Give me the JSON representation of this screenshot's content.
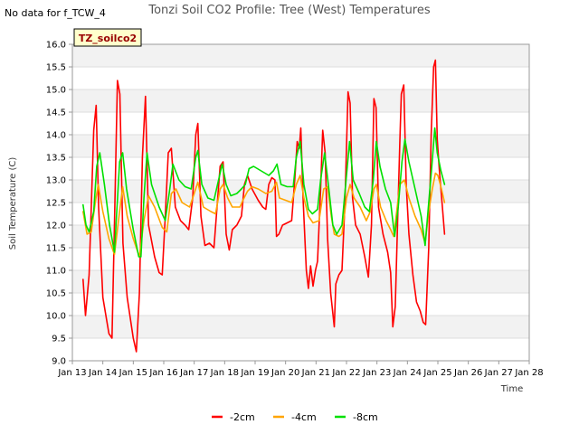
{
  "chart_data": {
    "type": "line",
    "title": "Tonzi Soil CO2 Profile: Tree (West) Temperatures",
    "no_data_note": "No data for f_TCW_4",
    "tag_label": "TZ_soilco2",
    "xlabel": "Time",
    "ylabel": "Soil Temperature (C)",
    "xlim": [
      13,
      28
    ],
    "ylim": [
      9.0,
      16.0
    ],
    "x_ticks": [
      13,
      14,
      15,
      16,
      17,
      18,
      19,
      20,
      21,
      22,
      23,
      24,
      25,
      26,
      27,
      28
    ],
    "x_tick_labels": [
      "Jan 13",
      "Jan 14",
      "Jan 15",
      "Jan 16",
      "Jan 17",
      "Jan 18",
      "Jan 19",
      "Jan 20",
      "Jan 21",
      "Jan 22",
      "Jan 23",
      "Jan 24",
      "Jan 25",
      "Jan 26",
      "Jan 27",
      "Jan 28"
    ],
    "y_ticks": [
      9.0,
      9.5,
      10.0,
      10.5,
      11.0,
      11.5,
      12.0,
      12.5,
      13.0,
      13.5,
      14.0,
      14.5,
      15.0,
      15.5,
      16.0
    ],
    "y_tick_labels": [
      "9.0",
      "9.5",
      "10.0",
      "10.5",
      "11.0",
      "11.5",
      "12.0",
      "12.5",
      "13.0",
      "13.5",
      "14.0",
      "14.5",
      "15.0",
      "15.5",
      "16.0"
    ],
    "series": [
      {
        "name": "-2cm",
        "color": "#ff0000",
        "points": [
          [
            13.35,
            10.8
          ],
          [
            13.43,
            10.0
          ],
          [
            13.55,
            10.9
          ],
          [
            13.7,
            14.1
          ],
          [
            13.78,
            14.65
          ],
          [
            13.86,
            12.4
          ],
          [
            14.0,
            10.4
          ],
          [
            14.2,
            9.6
          ],
          [
            14.3,
            9.5
          ],
          [
            14.38,
            12.0
          ],
          [
            14.48,
            15.2
          ],
          [
            14.56,
            14.9
          ],
          [
            14.66,
            11.6
          ],
          [
            14.8,
            10.4
          ],
          [
            15.0,
            9.5
          ],
          [
            15.1,
            9.2
          ],
          [
            15.2,
            10.5
          ],
          [
            15.3,
            13.5
          ],
          [
            15.4,
            14.85
          ],
          [
            15.5,
            12.0
          ],
          [
            15.7,
            11.3
          ],
          [
            15.85,
            10.95
          ],
          [
            15.95,
            10.9
          ],
          [
            16.05,
            12.2
          ],
          [
            16.15,
            13.6
          ],
          [
            16.25,
            13.7
          ],
          [
            16.38,
            12.4
          ],
          [
            16.55,
            12.1
          ],
          [
            16.7,
            12.0
          ],
          [
            16.82,
            11.9
          ],
          [
            16.95,
            12.6
          ],
          [
            17.05,
            14.0
          ],
          [
            17.12,
            14.25
          ],
          [
            17.22,
            12.2
          ],
          [
            17.35,
            11.55
          ],
          [
            17.5,
            11.6
          ],
          [
            17.65,
            11.5
          ],
          [
            17.75,
            12.4
          ],
          [
            17.85,
            13.3
          ],
          [
            17.95,
            13.4
          ],
          [
            18.05,
            11.8
          ],
          [
            18.15,
            11.45
          ],
          [
            18.25,
            11.9
          ],
          [
            18.4,
            12.0
          ],
          [
            18.55,
            12.2
          ],
          [
            18.65,
            12.9
          ],
          [
            18.75,
            13.1
          ],
          [
            18.9,
            12.8
          ],
          [
            19.1,
            12.55
          ],
          [
            19.25,
            12.4
          ],
          [
            19.35,
            12.35
          ],
          [
            19.45,
            12.9
          ],
          [
            19.55,
            13.05
          ],
          [
            19.65,
            13.0
          ],
          [
            19.7,
            11.75
          ],
          [
            19.78,
            11.8
          ],
          [
            19.9,
            12.0
          ],
          [
            20.05,
            12.05
          ],
          [
            20.2,
            12.1
          ],
          [
            20.3,
            13.0
          ],
          [
            20.38,
            13.85
          ],
          [
            20.45,
            13.7
          ],
          [
            20.5,
            14.15
          ],
          [
            20.58,
            12.5
          ],
          [
            20.68,
            11.0
          ],
          [
            20.75,
            10.6
          ],
          [
            20.82,
            11.1
          ],
          [
            20.9,
            10.65
          ],
          [
            20.98,
            11.0
          ],
          [
            21.05,
            11.2
          ],
          [
            21.15,
            12.8
          ],
          [
            21.22,
            14.1
          ],
          [
            21.3,
            13.6
          ],
          [
            21.38,
            11.7
          ],
          [
            21.48,
            10.5
          ],
          [
            21.6,
            9.75
          ],
          [
            21.65,
            10.7
          ],
          [
            21.75,
            10.9
          ],
          [
            21.85,
            11.0
          ],
          [
            21.95,
            12.5
          ],
          [
            22.05,
            14.95
          ],
          [
            22.12,
            14.7
          ],
          [
            22.2,
            12.6
          ],
          [
            22.3,
            12.0
          ],
          [
            22.45,
            11.8
          ],
          [
            22.6,
            11.3
          ],
          [
            22.72,
            10.85
          ],
          [
            22.82,
            12.0
          ],
          [
            22.9,
            14.8
          ],
          [
            22.97,
            14.6
          ],
          [
            23.05,
            12.4
          ],
          [
            23.2,
            11.8
          ],
          [
            23.35,
            11.4
          ],
          [
            23.45,
            10.95
          ],
          [
            23.52,
            9.75
          ],
          [
            23.6,
            10.2
          ],
          [
            23.75,
            13.8
          ],
          [
            23.8,
            14.9
          ],
          [
            23.88,
            15.1
          ],
          [
            23.96,
            12.9
          ],
          [
            24.05,
            11.8
          ],
          [
            24.18,
            10.9
          ],
          [
            24.3,
            10.3
          ],
          [
            24.42,
            10.1
          ],
          [
            24.52,
            9.85
          ],
          [
            24.6,
            9.8
          ],
          [
            24.7,
            11.5
          ],
          [
            24.78,
            14.0
          ],
          [
            24.86,
            15.5
          ],
          [
            24.92,
            15.65
          ],
          [
            24.98,
            13.9
          ],
          [
            25.05,
            13.2
          ],
          [
            25.15,
            12.4
          ],
          [
            25.22,
            11.8
          ]
        ]
      },
      {
        "name": "-4cm",
        "color": "#ffa500",
        "points": [
          [
            13.35,
            12.3
          ],
          [
            13.48,
            11.8
          ],
          [
            13.62,
            11.85
          ],
          [
            13.75,
            12.5
          ],
          [
            13.85,
            12.9
          ],
          [
            14.0,
            12.3
          ],
          [
            14.2,
            11.7
          ],
          [
            14.38,
            11.35
          ],
          [
            14.55,
            12.3
          ],
          [
            14.65,
            12.85
          ],
          [
            14.8,
            12.2
          ],
          [
            15.0,
            11.7
          ],
          [
            15.2,
            11.3
          ],
          [
            15.35,
            12.1
          ],
          [
            15.5,
            12.65
          ],
          [
            15.7,
            12.4
          ],
          [
            15.95,
            11.95
          ],
          [
            16.1,
            11.85
          ],
          [
            16.25,
            12.7
          ],
          [
            16.4,
            12.8
          ],
          [
            16.6,
            12.5
          ],
          [
            16.85,
            12.4
          ],
          [
            17.0,
            12.7
          ],
          [
            17.12,
            12.95
          ],
          [
            17.3,
            12.4
          ],
          [
            17.55,
            12.3
          ],
          [
            17.7,
            12.25
          ],
          [
            17.85,
            12.8
          ],
          [
            17.95,
            12.9
          ],
          [
            18.1,
            12.6
          ],
          [
            18.25,
            12.4
          ],
          [
            18.5,
            12.4
          ],
          [
            18.6,
            12.55
          ],
          [
            18.75,
            12.75
          ],
          [
            18.9,
            12.85
          ],
          [
            19.1,
            12.8
          ],
          [
            19.35,
            12.7
          ],
          [
            19.55,
            12.75
          ],
          [
            19.7,
            12.95
          ],
          [
            19.8,
            12.6
          ],
          [
            20.0,
            12.55
          ],
          [
            20.2,
            12.5
          ],
          [
            20.35,
            12.9
          ],
          [
            20.48,
            13.1
          ],
          [
            20.6,
            12.6
          ],
          [
            20.75,
            12.2
          ],
          [
            20.9,
            12.05
          ],
          [
            21.1,
            12.1
          ],
          [
            21.25,
            12.8
          ],
          [
            21.38,
            12.85
          ],
          [
            21.5,
            12.2
          ],
          [
            21.6,
            11.8
          ],
          [
            21.75,
            11.75
          ],
          [
            21.85,
            11.8
          ],
          [
            22.0,
            12.6
          ],
          [
            22.12,
            12.9
          ],
          [
            22.25,
            12.6
          ],
          [
            22.45,
            12.4
          ],
          [
            22.65,
            12.1
          ],
          [
            22.78,
            12.3
          ],
          [
            22.9,
            12.8
          ],
          [
            22.98,
            12.9
          ],
          [
            23.12,
            12.4
          ],
          [
            23.3,
            12.1
          ],
          [
            23.45,
            11.9
          ],
          [
            23.55,
            11.75
          ],
          [
            23.65,
            12.3
          ],
          [
            23.75,
            12.9
          ],
          [
            23.9,
            13.0
          ],
          [
            24.05,
            12.6
          ],
          [
            24.25,
            12.2
          ],
          [
            24.45,
            11.9
          ],
          [
            24.58,
            11.6
          ],
          [
            24.7,
            12.3
          ],
          [
            24.82,
            12.8
          ],
          [
            24.92,
            13.15
          ],
          [
            25.0,
            13.1
          ],
          [
            25.12,
            12.8
          ],
          [
            25.22,
            12.5
          ]
        ]
      },
      {
        "name": "-8cm",
        "color": "#00e000",
        "points": [
          [
            13.35,
            12.45
          ],
          [
            13.45,
            12.0
          ],
          [
            13.55,
            11.85
          ],
          [
            13.7,
            12.3
          ],
          [
            13.8,
            13.3
          ],
          [
            13.9,
            13.6
          ],
          [
            14.05,
            12.9
          ],
          [
            14.22,
            12.0
          ],
          [
            14.38,
            11.4
          ],
          [
            14.55,
            13.4
          ],
          [
            14.65,
            13.6
          ],
          [
            14.78,
            12.8
          ],
          [
            15.0,
            11.9
          ],
          [
            15.18,
            11.3
          ],
          [
            15.25,
            11.3
          ],
          [
            15.35,
            12.6
          ],
          [
            15.45,
            13.6
          ],
          [
            15.6,
            12.9
          ],
          [
            15.85,
            12.4
          ],
          [
            16.05,
            12.1
          ],
          [
            16.2,
            12.8
          ],
          [
            16.3,
            13.35
          ],
          [
            16.5,
            13.0
          ],
          [
            16.7,
            12.85
          ],
          [
            16.9,
            12.8
          ],
          [
            17.05,
            13.5
          ],
          [
            17.12,
            13.65
          ],
          [
            17.25,
            12.9
          ],
          [
            17.45,
            12.6
          ],
          [
            17.65,
            12.55
          ],
          [
            17.8,
            13.0
          ],
          [
            17.92,
            13.35
          ],
          [
            18.05,
            12.9
          ],
          [
            18.2,
            12.65
          ],
          [
            18.4,
            12.7
          ],
          [
            18.55,
            12.8
          ],
          [
            18.68,
            12.9
          ],
          [
            18.8,
            13.25
          ],
          [
            18.95,
            13.3
          ],
          [
            19.2,
            13.2
          ],
          [
            19.45,
            13.1
          ],
          [
            19.6,
            13.2
          ],
          [
            19.72,
            13.35
          ],
          [
            19.85,
            12.9
          ],
          [
            20.05,
            12.85
          ],
          [
            20.25,
            12.85
          ],
          [
            20.35,
            13.5
          ],
          [
            20.48,
            13.85
          ],
          [
            20.6,
            12.9
          ],
          [
            20.75,
            12.35
          ],
          [
            20.88,
            12.25
          ],
          [
            21.05,
            12.35
          ],
          [
            21.15,
            13.0
          ],
          [
            21.28,
            13.6
          ],
          [
            21.42,
            12.8
          ],
          [
            21.55,
            12.0
          ],
          [
            21.68,
            11.8
          ],
          [
            21.85,
            12.0
          ],
          [
            22.0,
            13.1
          ],
          [
            22.1,
            13.85
          ],
          [
            22.22,
            13.0
          ],
          [
            22.42,
            12.7
          ],
          [
            22.6,
            12.4
          ],
          [
            22.75,
            12.3
          ],
          [
            22.88,
            13.0
          ],
          [
            22.98,
            13.85
          ],
          [
            23.1,
            13.3
          ],
          [
            23.28,
            12.8
          ],
          [
            23.45,
            12.5
          ],
          [
            23.58,
            11.75
          ],
          [
            23.7,
            12.4
          ],
          [
            23.82,
            13.4
          ],
          [
            23.92,
            13.9
          ],
          [
            24.05,
            13.4
          ],
          [
            24.25,
            12.8
          ],
          [
            24.45,
            12.2
          ],
          [
            24.58,
            11.55
          ],
          [
            24.7,
            12.5
          ],
          [
            24.8,
            13.3
          ],
          [
            24.9,
            14.15
          ],
          [
            24.98,
            13.6
          ],
          [
            25.1,
            13.2
          ],
          [
            25.22,
            12.9
          ]
        ]
      }
    ],
    "legend_position": "bottom-center"
  }
}
